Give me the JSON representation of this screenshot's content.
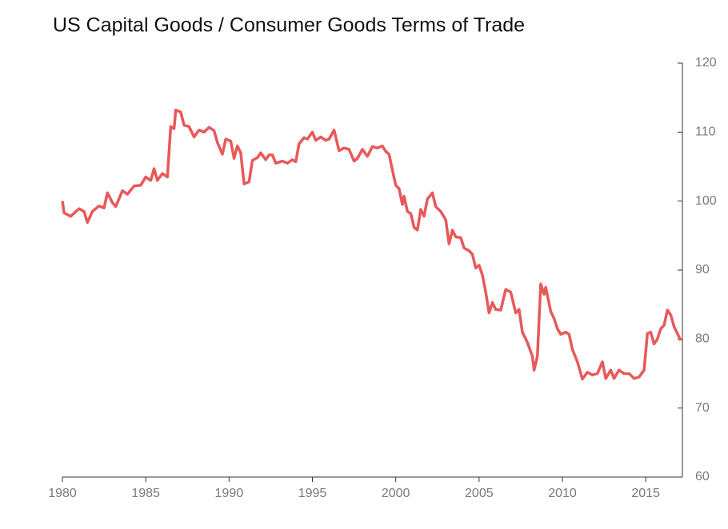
{
  "chart_data": {
    "type": "line",
    "title": "US Capital Goods / Consumer Goods Terms of Trade",
    "xlim": [
      1980,
      2017.2
    ],
    "xticks": [
      1980,
      1985,
      1990,
      1995,
      2000,
      2005,
      2010,
      2015
    ],
    "ylim": [
      60,
      120
    ],
    "yticks": [
      60,
      70,
      80,
      90,
      100,
      110,
      120
    ],
    "y_axis_side": "right",
    "grid": false,
    "series": [
      {
        "color": "#e8595a",
        "x": [
          1980.0,
          1980.1,
          1980.5,
          1981.0,
          1981.3,
          1981.5,
          1981.8,
          1982.2,
          1982.5,
          1982.7,
          1983.0,
          1983.2,
          1983.6,
          1983.9,
          1984.3,
          1984.7,
          1985.0,
          1985.3,
          1985.5,
          1985.7,
          1986.0,
          1986.3,
          1986.5,
          1986.7,
          1986.8,
          1987.1,
          1987.3,
          1987.6,
          1987.9,
          1988.2,
          1988.5,
          1988.8,
          1989.1,
          1989.3,
          1989.6,
          1989.8,
          1990.1,
          1990.3,
          1990.5,
          1990.7,
          1990.9,
          1991.2,
          1991.4,
          1991.7,
          1991.9,
          1992.2,
          1992.4,
          1992.6,
          1992.8,
          1993.2,
          1993.5,
          1993.8,
          1994.0,
          1994.2,
          1994.5,
          1994.7,
          1995.0,
          1995.2,
          1995.5,
          1995.8,
          1996.0,
          1996.3,
          1996.6,
          1996.9,
          1997.2,
          1997.5,
          1997.7,
          1998.0,
          1998.3,
          1998.6,
          1998.9,
          1999.2,
          1999.4,
          1999.6,
          1999.8,
          2000.0,
          2000.2,
          2000.4,
          2000.5,
          2000.7,
          2000.9,
          2001.1,
          2001.3,
          2001.5,
          2001.7,
          2001.9,
          2002.2,
          2002.4,
          2002.7,
          2003.0,
          2003.2,
          2003.4,
          2003.6,
          2003.9,
          2004.1,
          2004.4,
          2004.6,
          2004.8,
          2005.0,
          2005.2,
          2005.4,
          2005.6,
          2005.8,
          2006.0,
          2006.3,
          2006.6,
          2006.9,
          2007.2,
          2007.4,
          2007.6,
          2007.9,
          2008.2,
          2008.3,
          2008.5,
          2008.7,
          2008.9,
          2009.0,
          2009.3,
          2009.5,
          2009.7,
          2009.9,
          2010.2,
          2010.4,
          2010.6,
          2010.9,
          2011.2,
          2011.5,
          2011.8,
          2012.1,
          2012.4,
          2012.6,
          2012.9,
          2013.1,
          2013.4,
          2013.7,
          2014.0,
          2014.3,
          2014.6,
          2014.9,
          2015.1,
          2015.3,
          2015.5,
          2015.7,
          2015.9,
          2016.1,
          2016.3,
          2016.5,
          2016.7,
          2016.9,
          2017.1
        ],
        "values": [
          100,
          98.3,
          97.8,
          98.9,
          98.5,
          96.9,
          98.5,
          99.3,
          99.0,
          101.2,
          99.8,
          99.2,
          101.5,
          101.0,
          102.2,
          102.3,
          103.5,
          103.0,
          104.7,
          103.0,
          104.0,
          103.5,
          110.8,
          110.5,
          113.2,
          112.9,
          111.0,
          110.8,
          109.3,
          110.3,
          110.0,
          110.7,
          110.2,
          108.5,
          106.8,
          109.0,
          108.7,
          106.2,
          108.0,
          107.0,
          102.5,
          102.8,
          105.9,
          106.3,
          107.0,
          106.0,
          106.7,
          106.7,
          105.5,
          105.8,
          105.5,
          106.0,
          105.7,
          108.3,
          109.2,
          109.0,
          110.0,
          108.8,
          109.3,
          108.8,
          109.0,
          110.3,
          107.3,
          107.7,
          107.5,
          105.8,
          106.2,
          107.5,
          106.5,
          107.9,
          107.7,
          108.0,
          107.2,
          106.8,
          104.5,
          102.3,
          101.8,
          99.5,
          100.7,
          98.5,
          98.2,
          96.2,
          95.8,
          98.8,
          97.8,
          100.3,
          101.2,
          99.2,
          98.5,
          97.3,
          93.8,
          95.8,
          94.8,
          94.7,
          93.2,
          92.8,
          92.3,
          90.3,
          90.7,
          89.3,
          86.8,
          83.8,
          85.3,
          84.3,
          84.2,
          87.2,
          86.8,
          83.8,
          84.3,
          81.0,
          79.5,
          77.5,
          75.5,
          77.5,
          88.0,
          86.5,
          87.5,
          84.0,
          83.0,
          81.5,
          80.7,
          81.0,
          80.7,
          78.5,
          76.7,
          74.2,
          75.2,
          74.8,
          75.0,
          76.7,
          74.3,
          75.5,
          74.3,
          75.5,
          75.0,
          75.0,
          74.3,
          74.5,
          75.5,
          80.8,
          81.0,
          79.3,
          80.0,
          81.5,
          82.0,
          84.2,
          83.5,
          81.8,
          80.8,
          79.8
        ]
      }
    ]
  }
}
